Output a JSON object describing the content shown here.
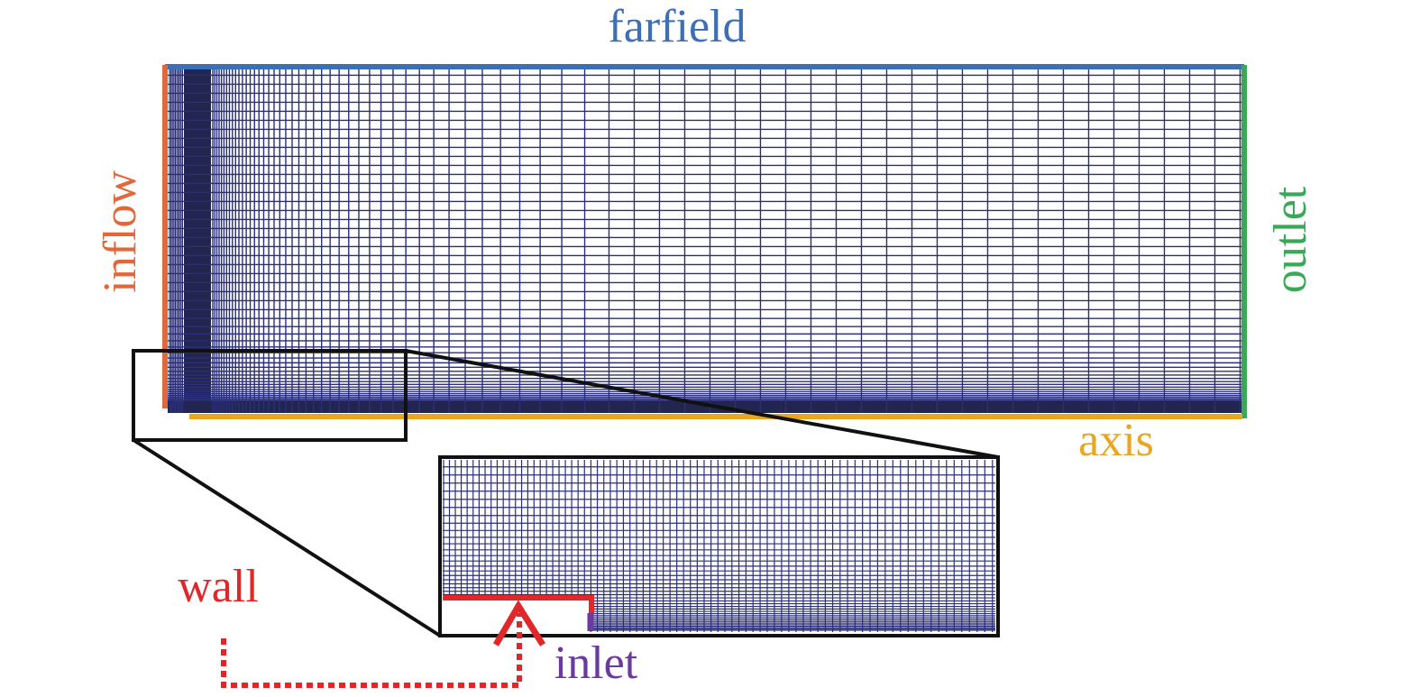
{
  "labels": {
    "farfield": "farfield",
    "inflow": "inflow",
    "outlet": "outlet",
    "axis": "axis",
    "wall": "wall",
    "inlet": "inlet"
  },
  "colors": {
    "mesh": "#2b2f7a",
    "mesh_dense": "#22254f",
    "farfield": "#3d6fb5",
    "inflow": "#e0683a",
    "outlet": "#3aa957",
    "axis": "#e9a623",
    "wall": "#e0282a",
    "inlet": "#6a3a9e",
    "frame": "#111111"
  }
}
